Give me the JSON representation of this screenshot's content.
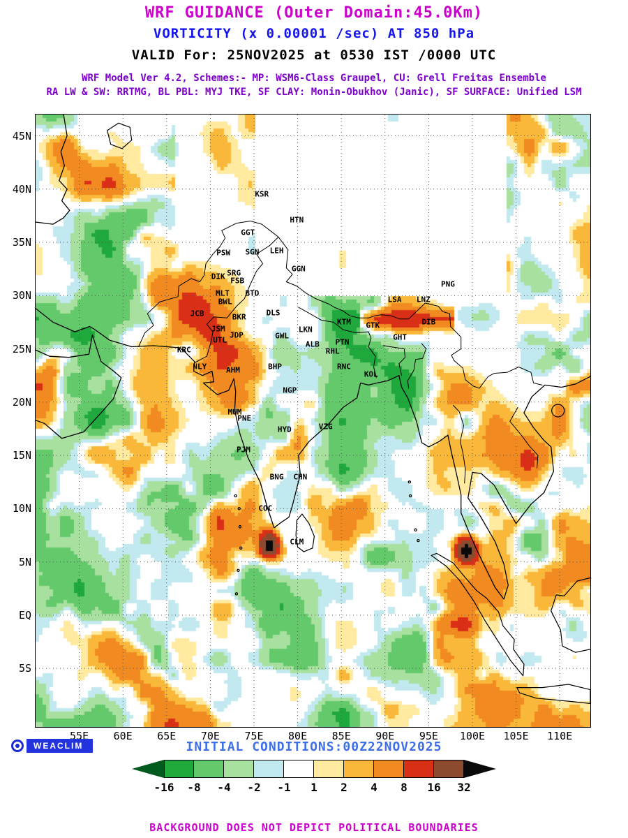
{
  "header": {
    "line1": "WRF GUIDANCE (Outer Domain:45.0Km)",
    "line2": "VORTICITY (x 0.00001 /sec) AT 850 hPa",
    "line3": "VALID For: 25NOV2025 at 0530 IST /0000 UTC",
    "line4": "WRF Model Ver 4.2, Schemes:- MP: WSM6-Class Graupel, CU: Grell Freitas Ensemble",
    "line5": "RA LW & SW: RRTMG, BL PBL: MYJ TKE, SF CLAY: Monin-Obukhov (Janic), SF SURFACE: Unified LSM"
  },
  "colors": {
    "title": "#cc00cc",
    "subtitle": "#1414ee",
    "valid": "#000000",
    "model_lines": "#7d00cc",
    "initial": "#3f6fe8",
    "disclaimer": "#cc00cc",
    "logo_bg": "#2233dd"
  },
  "map": {
    "extent": {
      "lon_min": 50,
      "lon_max": 113.5,
      "lat_min": -10.5,
      "lat_max": 47
    },
    "lat_ticks": [
      {
        "label": "45N",
        "value": 45
      },
      {
        "label": "40N",
        "value": 40
      },
      {
        "label": "35N",
        "value": 35
      },
      {
        "label": "30N",
        "value": 30
      },
      {
        "label": "25N",
        "value": 25
      },
      {
        "label": "20N",
        "value": 20
      },
      {
        "label": "15N",
        "value": 15
      },
      {
        "label": "10N",
        "value": 10
      },
      {
        "label": "5N",
        "value": 5
      },
      {
        "label": "EQ",
        "value": 0
      },
      {
        "label": "5S",
        "value": -5
      }
    ],
    "lon_ticks": [
      {
        "label": "55E",
        "value": 55
      },
      {
        "label": "60E",
        "value": 60
      },
      {
        "label": "65E",
        "value": 65
      },
      {
        "label": "70E",
        "value": 70
      },
      {
        "label": "75E",
        "value": 75
      },
      {
        "label": "80E",
        "value": 80
      },
      {
        "label": "85E",
        "value": 85
      },
      {
        "label": "90E",
        "value": 90
      },
      {
        "label": "95E",
        "value": 95
      },
      {
        "label": "100E",
        "value": 100
      },
      {
        "label": "105E",
        "value": 105
      },
      {
        "label": "110E",
        "value": 110
      }
    ],
    "stations": [
      {
        "label": "KSR",
        "lon": 75.9,
        "lat": 39.5
      },
      {
        "label": "HTN",
        "lon": 79.9,
        "lat": 37.1
      },
      {
        "label": "GGT",
        "lon": 74.3,
        "lat": 35.9
      },
      {
        "label": "PSW",
        "lon": 71.5,
        "lat": 34.0
      },
      {
        "label": "SGN",
        "lon": 74.8,
        "lat": 34.1
      },
      {
        "label": "LEH",
        "lon": 77.6,
        "lat": 34.2
      },
      {
        "label": "SRG",
        "lon": 72.7,
        "lat": 32.1
      },
      {
        "label": "DIK",
        "lon": 70.9,
        "lat": 31.8
      },
      {
        "label": "FSB",
        "lon": 73.1,
        "lat": 31.4
      },
      {
        "label": "GGN",
        "lon": 80.1,
        "lat": 32.5
      },
      {
        "label": "MLT",
        "lon": 71.4,
        "lat": 30.2
      },
      {
        "label": "BTD",
        "lon": 74.8,
        "lat": 30.2
      },
      {
        "label": "BWL",
        "lon": 71.7,
        "lat": 29.4
      },
      {
        "label": "PNG",
        "lon": 97.2,
        "lat": 31.1
      },
      {
        "label": "LNZ",
        "lon": 94.4,
        "lat": 29.6
      },
      {
        "label": "LSA",
        "lon": 91.1,
        "lat": 29.6
      },
      {
        "label": "JCB",
        "lon": 68.5,
        "lat": 28.3
      },
      {
        "label": "BKR",
        "lon": 73.3,
        "lat": 28.0
      },
      {
        "label": "DLS",
        "lon": 77.2,
        "lat": 28.4
      },
      {
        "label": "KTM",
        "lon": 85.3,
        "lat": 27.5
      },
      {
        "label": "GTK",
        "lon": 88.6,
        "lat": 27.2
      },
      {
        "label": "GHT",
        "lon": 91.7,
        "lat": 26.1
      },
      {
        "label": "DIB",
        "lon": 95.0,
        "lat": 27.5
      },
      {
        "label": "JSM",
        "lon": 70.9,
        "lat": 26.9
      },
      {
        "label": "JDP",
        "lon": 73.0,
        "lat": 26.3
      },
      {
        "label": "UTL",
        "lon": 71.1,
        "lat": 25.8
      },
      {
        "label": "GWL",
        "lon": 78.2,
        "lat": 26.2
      },
      {
        "label": "LKN",
        "lon": 80.9,
        "lat": 26.8
      },
      {
        "label": "ALB",
        "lon": 81.7,
        "lat": 25.4
      },
      {
        "label": "PTN",
        "lon": 85.1,
        "lat": 25.6
      },
      {
        "label": "RHL",
        "lon": 84.0,
        "lat": 24.8
      },
      {
        "label": "KRC",
        "lon": 67.0,
        "lat": 24.9
      },
      {
        "label": "NLY",
        "lon": 68.8,
        "lat": 23.3
      },
      {
        "label": "AHM",
        "lon": 72.6,
        "lat": 23.0
      },
      {
        "label": "BHP",
        "lon": 77.4,
        "lat": 23.3
      },
      {
        "label": "RNC",
        "lon": 85.3,
        "lat": 23.3
      },
      {
        "label": "KOL",
        "lon": 88.4,
        "lat": 22.6
      },
      {
        "label": "NGP",
        "lon": 79.1,
        "lat": 21.1
      },
      {
        "label": "MUM",
        "lon": 72.8,
        "lat": 19.1
      },
      {
        "label": "PNE",
        "lon": 73.9,
        "lat": 18.5
      },
      {
        "label": "HYD",
        "lon": 78.5,
        "lat": 17.4
      },
      {
        "label": "VZG",
        "lon": 83.2,
        "lat": 17.7
      },
      {
        "label": "PJM",
        "lon": 73.8,
        "lat": 15.5
      },
      {
        "label": "BNG",
        "lon": 77.6,
        "lat": 13.0
      },
      {
        "label": "CHN",
        "lon": 80.3,
        "lat": 13.0
      },
      {
        "label": "COC",
        "lon": 76.3,
        "lat": 10.0
      },
      {
        "label": "CLM",
        "lon": 79.9,
        "lat": 6.9
      }
    ]
  },
  "footer": {
    "logo": "WEACLIM",
    "initial_conditions": "INITIAL CONDITIONS:00Z22NOV2025",
    "disclaimer": "BACKGROUND DOES NOT DEPICT POLITICAL BOUNDARIES"
  },
  "chart_data": {
    "type": "heatmap",
    "title": "WRF GUIDANCE (Outer Domain:45.0Km)",
    "subtitle": "VORTICITY (x 0.00001 /sec) AT 850 hPa",
    "valid_time": "25NOV2025 at 0530 IST /0000 UTC",
    "initial_time": "00Z22NOV2025",
    "variable": "Vorticity",
    "units": "x 0.00001 /sec",
    "pressure_level": "850 hPa",
    "domain_resolution": "45.0Km",
    "x_range": [
      50,
      113.5
    ],
    "y_range": [
      -10.5,
      47
    ],
    "x_tick_labels": [
      "55E",
      "60E",
      "65E",
      "70E",
      "75E",
      "80E",
      "85E",
      "90E",
      "95E",
      "100E",
      "105E",
      "110E"
    ],
    "y_tick_labels": [
      "45N",
      "40N",
      "35N",
      "30N",
      "25N",
      "20N",
      "15N",
      "10N",
      "5N",
      "EQ",
      "5S"
    ],
    "grid": true,
    "legend_position": "bottom",
    "colorbar": {
      "boundaries": [
        -16,
        -8,
        -4,
        -2,
        -1,
        1,
        2,
        4,
        8,
        16,
        32
      ],
      "boundary_labels": [
        "-16",
        "-8",
        "-4",
        "-2",
        "-1",
        "1",
        "2",
        "4",
        "8",
        "16",
        "32"
      ],
      "colors": [
        "#005a1e",
        "#1fa83c",
        "#63c96b",
        "#a8e0a0",
        "#c2e9ef",
        "#ffffff",
        "#ffeaa0",
        "#f9b839",
        "#f28a22",
        "#d92f16",
        "#8c4a2e",
        "#0a0a0a"
      ]
    }
  }
}
